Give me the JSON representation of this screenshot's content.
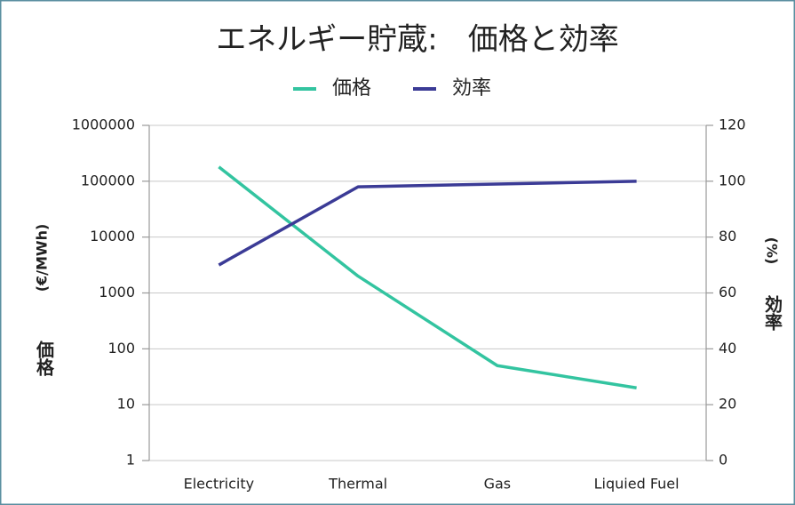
{
  "chart_data": {
    "type": "line",
    "title": "エネルギー貯蔵:　価格と効率",
    "categories": [
      "Electricity",
      "Thermal",
      "Gas",
      "Liquied Fuel"
    ],
    "series": [
      {
        "name": "価格",
        "color": "#33c4a0",
        "values": [
          180000,
          2000,
          50,
          20
        ]
      },
      {
        "name": "効率",
        "color": "#3b3b96",
        "axis": "y2",
        "values": [
          70,
          98,
          99,
          100
        ]
      }
    ],
    "y_label": "価格",
    "y_label_unit": "(€/MWh)",
    "y2_label": "効率",
    "y2_label_unit": "(%)",
    "log_y": true,
    "ylim": [
      1,
      1000000
    ],
    "yticks": [
      1,
      10,
      100,
      1000,
      10000,
      100000,
      1000000
    ],
    "y2lim": [
      0,
      120
    ],
    "y2ticks": [
      0,
      20,
      40,
      60,
      80,
      100,
      120
    ],
    "grid": true,
    "legend": "top"
  }
}
